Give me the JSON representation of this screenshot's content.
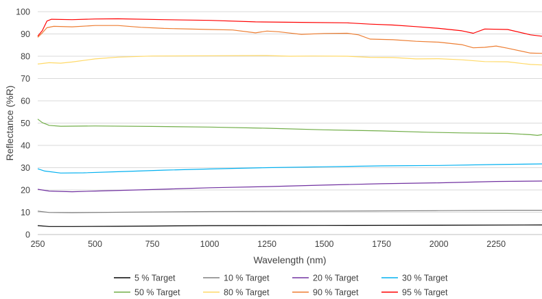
{
  "chart_data": {
    "type": "line",
    "title": "",
    "xlabel": "Wavelength (nm)",
    "ylabel": "Reflectance (%R)",
    "xlim": [
      250,
      2450
    ],
    "ylim": [
      0,
      100
    ],
    "xticks": [
      250,
      500,
      750,
      1000,
      1250,
      1500,
      1750,
      2000,
      2250
    ],
    "yticks": [
      0,
      10,
      20,
      30,
      40,
      50,
      60,
      70,
      80,
      90,
      100
    ],
    "grid": "horizontal",
    "legend_position": "bottom",
    "series": [
      {
        "name": "5 % Target",
        "color": "#000000",
        "points": [
          [
            250,
            4.0
          ],
          [
            300,
            3.6
          ],
          [
            400,
            3.6
          ],
          [
            600,
            3.7
          ],
          [
            1000,
            4.0
          ],
          [
            1500,
            4.1
          ],
          [
            2000,
            4.2
          ],
          [
            2450,
            4.3
          ]
        ]
      },
      {
        "name": "10 % Target",
        "color": "#7f7f7f",
        "points": [
          [
            250,
            10.5
          ],
          [
            300,
            9.9
          ],
          [
            400,
            9.8
          ],
          [
            600,
            10.0
          ],
          [
            1000,
            10.3
          ],
          [
            1500,
            10.5
          ],
          [
            2000,
            10.7
          ],
          [
            2300,
            10.9
          ],
          [
            2450,
            10.9
          ]
        ]
      },
      {
        "name": "20 % Target",
        "color": "#7030a0",
        "points": [
          [
            250,
            20.3
          ],
          [
            300,
            19.5
          ],
          [
            400,
            19.2
          ],
          [
            500,
            19.5
          ],
          [
            750,
            20.2
          ],
          [
            1000,
            21.0
          ],
          [
            1250,
            21.5
          ],
          [
            1500,
            22.2
          ],
          [
            1750,
            22.8
          ],
          [
            2000,
            23.2
          ],
          [
            2250,
            23.8
          ],
          [
            2450,
            24.0
          ]
        ]
      },
      {
        "name": "30 % Target",
        "color": "#00b0f0",
        "points": [
          [
            250,
            29.5
          ],
          [
            280,
            28.5
          ],
          [
            350,
            27.6
          ],
          [
            450,
            27.7
          ],
          [
            600,
            28.2
          ],
          [
            800,
            28.9
          ],
          [
            1000,
            29.4
          ],
          [
            1250,
            30.0
          ],
          [
            1500,
            30.4
          ],
          [
            1750,
            30.8
          ],
          [
            2000,
            31.0
          ],
          [
            2250,
            31.4
          ],
          [
            2450,
            31.7
          ]
        ]
      },
      {
        "name": "50 % Target",
        "color": "#70ad47",
        "points": [
          [
            250,
            51.8
          ],
          [
            270,
            50.2
          ],
          [
            300,
            49.0
          ],
          [
            350,
            48.6
          ],
          [
            500,
            48.7
          ],
          [
            750,
            48.5
          ],
          [
            1000,
            48.2
          ],
          [
            1250,
            47.7
          ],
          [
            1500,
            47.0
          ],
          [
            1750,
            46.5
          ],
          [
            1950,
            45.9
          ],
          [
            2100,
            45.6
          ],
          [
            2300,
            45.4
          ],
          [
            2400,
            44.8
          ],
          [
            2430,
            44.5
          ],
          [
            2450,
            44.8
          ]
        ]
      },
      {
        "name": "80 % Target",
        "color": "#ffd966",
        "points": [
          [
            250,
            76.5
          ],
          [
            300,
            77.1
          ],
          [
            350,
            76.9
          ],
          [
            400,
            77.4
          ],
          [
            500,
            78.8
          ],
          [
            600,
            79.6
          ],
          [
            750,
            80.1
          ],
          [
            1000,
            80.2
          ],
          [
            1250,
            80.3
          ],
          [
            1350,
            80.0
          ],
          [
            1450,
            80.1
          ],
          [
            1600,
            80.0
          ],
          [
            1700,
            79.5
          ],
          [
            1800,
            79.4
          ],
          [
            1900,
            78.8
          ],
          [
            2000,
            78.9
          ],
          [
            2100,
            78.4
          ],
          [
            2200,
            77.6
          ],
          [
            2300,
            77.5
          ],
          [
            2400,
            76.3
          ],
          [
            2450,
            76.1
          ]
        ]
      },
      {
        "name": "90 % Target",
        "color": "#ed7d31",
        "points": [
          [
            250,
            88.5
          ],
          [
            270,
            90.5
          ],
          [
            290,
            92.8
          ],
          [
            320,
            93.4
          ],
          [
            400,
            93.2
          ],
          [
            500,
            93.8
          ],
          [
            600,
            93.8
          ],
          [
            700,
            93.0
          ],
          [
            800,
            92.5
          ],
          [
            1000,
            92.0
          ],
          [
            1100,
            91.8
          ],
          [
            1200,
            90.5
          ],
          [
            1250,
            91.3
          ],
          [
            1300,
            91.0
          ],
          [
            1350,
            90.4
          ],
          [
            1400,
            89.8
          ],
          [
            1500,
            90.2
          ],
          [
            1600,
            90.3
          ],
          [
            1650,
            89.6
          ],
          [
            1700,
            87.7
          ],
          [
            1800,
            87.4
          ],
          [
            1900,
            86.7
          ],
          [
            2000,
            86.3
          ],
          [
            2100,
            85.2
          ],
          [
            2150,
            83.8
          ],
          [
            2200,
            84.0
          ],
          [
            2250,
            84.6
          ],
          [
            2300,
            83.6
          ],
          [
            2400,
            81.4
          ],
          [
            2450,
            81.3
          ]
        ]
      },
      {
        "name": "95 % Target",
        "color": "#ff0000",
        "points": [
          [
            250,
            89.0
          ],
          [
            270,
            91.5
          ],
          [
            290,
            95.8
          ],
          [
            310,
            96.6
          ],
          [
            400,
            96.4
          ],
          [
            500,
            96.7
          ],
          [
            600,
            96.8
          ],
          [
            800,
            96.4
          ],
          [
            1000,
            96.1
          ],
          [
            1200,
            95.4
          ],
          [
            1400,
            95.2
          ],
          [
            1600,
            95.0
          ],
          [
            1700,
            94.4
          ],
          [
            1800,
            94.0
          ],
          [
            1900,
            93.3
          ],
          [
            2000,
            92.5
          ],
          [
            2100,
            91.4
          ],
          [
            2150,
            90.3
          ],
          [
            2200,
            92.2
          ],
          [
            2300,
            92.0
          ],
          [
            2400,
            89.6
          ],
          [
            2450,
            89.0
          ]
        ]
      }
    ]
  }
}
